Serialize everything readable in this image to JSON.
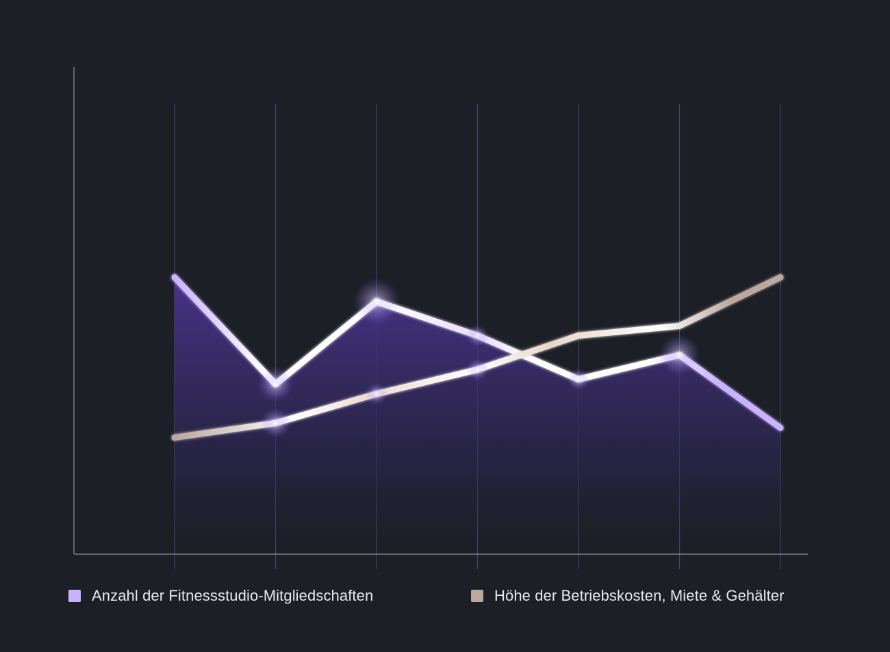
{
  "chart_data": {
    "type": "line",
    "title": "",
    "xlabel": "",
    "ylabel": "",
    "x": [
      1,
      2,
      3,
      4,
      5,
      6,
      7
    ],
    "ylim": [
      0,
      100
    ],
    "grid": "vertical",
    "legend_position": "bottom",
    "series": [
      {
        "name": "Anzahl der Fitnessstudio-Mitgliedschaften",
        "color": "#c9b3ff",
        "area_fill": true,
        "values": [
          57,
          35,
          52,
          45,
          36,
          41,
          26
        ]
      },
      {
        "name": "Höhe der Betriebskosten, Miete & Gehälter",
        "color": "#bba8a0",
        "area_fill": false,
        "values": [
          24,
          27,
          33,
          38,
          45,
          47,
          57
        ]
      }
    ]
  },
  "colors": {
    "background": "#1d1f27",
    "axis": "#7d7b93",
    "gridline": "#4c4a78",
    "area_top": "#4a3490",
    "glow": "#ffffff"
  }
}
